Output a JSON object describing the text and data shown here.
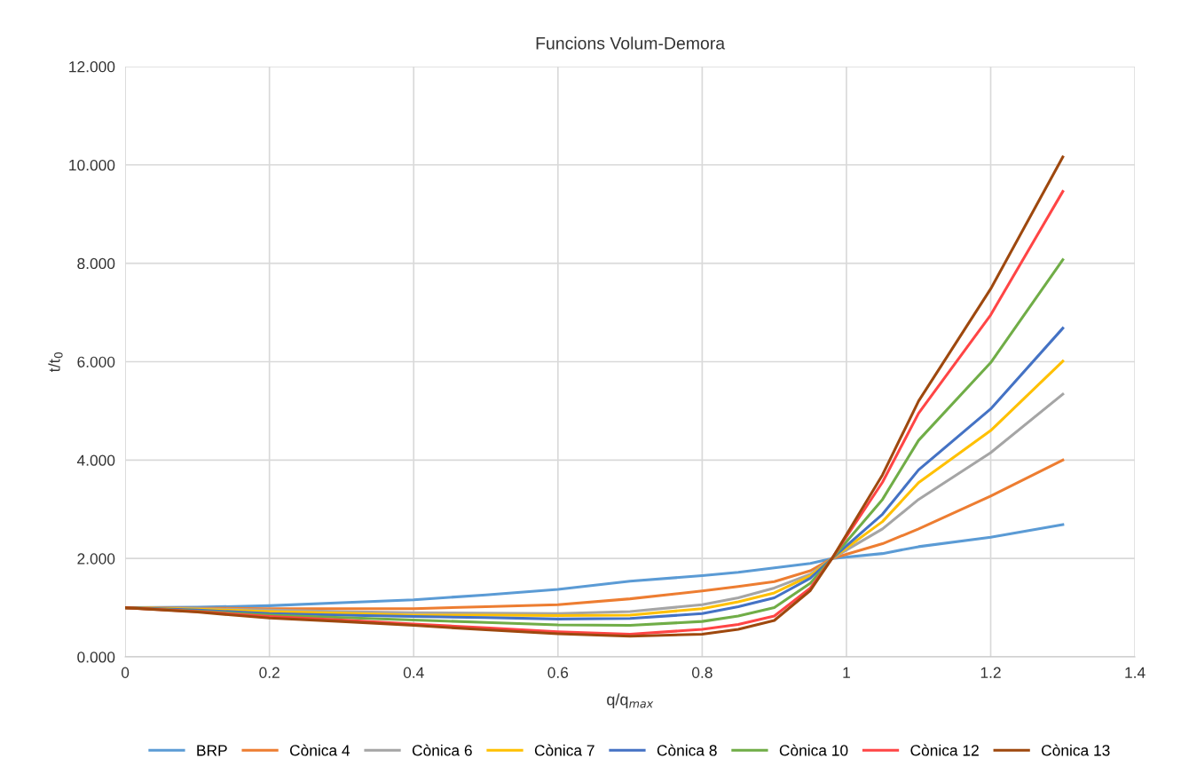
{
  "chart_data": {
    "type": "line",
    "title": "Funcions Volum-Demora",
    "xlabel": "q/q$_{max}$",
    "ylabel": "t/t$_{0}$",
    "x": [
      0,
      0.1,
      0.2,
      0.3,
      0.4,
      0.5,
      0.6,
      0.7,
      0.8,
      0.85,
      0.9,
      0.95,
      0.98,
      1.05,
      1.1,
      1.2,
      1.3
    ],
    "xlim": [
      0,
      1.4
    ],
    "xticks": [
      0,
      0.2,
      0.4,
      0.6,
      0.8,
      1,
      1.2,
      1.4
    ],
    "ylim": [
      0,
      12
    ],
    "yticks": [
      {
        "value": 0,
        "label": "0.000"
      },
      {
        "value": 2,
        "label": "2.000"
      },
      {
        "value": 4,
        "label": "4.000"
      },
      {
        "value": 6,
        "label": "6.000"
      },
      {
        "value": 8,
        "label": "8.000"
      },
      {
        "value": 10,
        "label": "10.000"
      },
      {
        "value": 12,
        "label": "12.000"
      }
    ],
    "grid": true,
    "legend": "bottom",
    "marker": "none",
    "line_style": "solid",
    "series": [
      {
        "name": "BRP",
        "color": "#5b9bd5",
        "values": [
          1.0,
          1.01,
          1.04,
          1.1,
          1.16,
          1.26,
          1.37,
          1.54,
          1.65,
          1.72,
          1.81,
          1.9,
          2.0,
          2.1,
          2.24,
          2.43,
          2.69
        ]
      },
      {
        "name": "Cònica 4",
        "color": "#ed7d31",
        "values": [
          1.0,
          0.99,
          0.98,
          0.98,
          0.98,
          1.02,
          1.06,
          1.18,
          1.34,
          1.43,
          1.53,
          1.75,
          2.0,
          2.3,
          2.6,
          3.27,
          4.0
        ]
      },
      {
        "name": "Cònica 6",
        "color": "#a5a5a5",
        "values": [
          1.0,
          0.98,
          0.95,
          0.92,
          0.9,
          0.89,
          0.88,
          0.92,
          1.06,
          1.2,
          1.4,
          1.68,
          2.0,
          2.6,
          3.2,
          4.15,
          5.34
        ]
      },
      {
        "name": "Cònica 7",
        "color": "#ffc000",
        "values": [
          1.0,
          0.97,
          0.92,
          0.89,
          0.85,
          0.85,
          0.84,
          0.85,
          0.98,
          1.12,
          1.3,
          1.65,
          2.0,
          2.75,
          3.54,
          4.6,
          6.01
        ]
      },
      {
        "name": "Cònica 8",
        "color": "#4472c4",
        "values": [
          1.0,
          0.95,
          0.88,
          0.85,
          0.82,
          0.8,
          0.77,
          0.78,
          0.88,
          1.02,
          1.2,
          1.6,
          2.0,
          2.9,
          3.8,
          5.04,
          6.68
        ]
      },
      {
        "name": "Cònica 10",
        "color": "#70ad47",
        "values": [
          1.0,
          0.93,
          0.85,
          0.8,
          0.75,
          0.7,
          0.65,
          0.64,
          0.72,
          0.83,
          1.0,
          1.5,
          2.0,
          3.2,
          4.4,
          5.98,
          8.07
        ]
      },
      {
        "name": "Cònica 12",
        "color": "#ff4545",
        "values": [
          1.0,
          0.92,
          0.82,
          0.75,
          0.67,
          0.59,
          0.51,
          0.46,
          0.56,
          0.66,
          0.83,
          1.4,
          2.0,
          3.55,
          4.95,
          6.95,
          9.46
        ]
      },
      {
        "name": "Cònica 13",
        "color": "#9e480e",
        "values": [
          1.0,
          0.91,
          0.79,
          0.72,
          0.64,
          0.55,
          0.47,
          0.42,
          0.46,
          0.56,
          0.74,
          1.35,
          2.0,
          3.7,
          5.2,
          7.48,
          10.16
        ]
      }
    ]
  }
}
